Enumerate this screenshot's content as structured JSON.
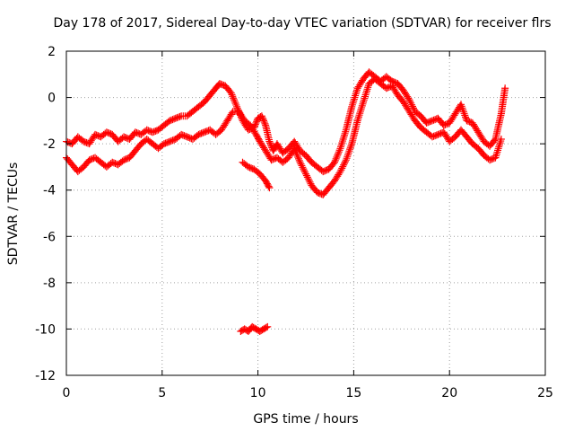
{
  "chart_data": {
    "type": "scatter",
    "title": "Day 178 of 2017, Sidereal Day-to-day VTEC variation (SDTVAR) for receiver flrs",
    "xlabel": "GPS time / hours",
    "ylabel": "SDTVAR / TECUs",
    "xlim": [
      0,
      25
    ],
    "ylim": [
      -12,
      2
    ],
    "xticks": [
      0,
      5,
      10,
      15,
      20,
      25
    ],
    "yticks": [
      -12,
      -10,
      -8,
      -6,
      -4,
      -2,
      0,
      2
    ],
    "grid": true,
    "marker": "plus",
    "color": "#ff0000",
    "series": [
      {
        "name": "main-band-upper",
        "x": [
          0.0,
          0.3,
          0.6,
          0.9,
          1.2,
          1.5,
          1.8,
          2.1,
          2.4,
          2.7,
          3.0,
          3.3,
          3.6,
          3.9,
          4.2,
          4.5,
          4.8,
          5.1,
          5.4,
          5.7,
          6.0,
          6.3,
          6.6,
          6.9,
          7.2,
          7.5,
          7.8,
          8.0,
          8.3,
          8.6,
          8.9,
          9.2,
          9.5,
          9.8,
          10.0,
          10.2,
          10.4,
          10.6,
          10.8,
          11.0,
          11.3,
          11.6,
          11.9,
          12.2,
          12.5,
          12.8,
          13.1,
          13.4,
          13.7,
          14.0,
          14.3,
          14.6,
          14.9,
          15.2,
          15.5,
          15.8,
          16.1,
          16.4,
          16.7,
          17.0,
          17.3,
          17.6,
          17.9,
          18.2,
          18.5,
          18.8,
          19.1,
          19.4,
          19.7,
          20.0,
          20.3,
          20.6,
          20.9,
          21.2,
          21.5,
          21.8,
          22.1,
          22.4,
          22.7,
          22.9
        ],
        "y": [
          -1.9,
          -2.0,
          -1.7,
          -1.9,
          -2.0,
          -1.6,
          -1.7,
          -1.5,
          -1.6,
          -1.9,
          -1.7,
          -1.8,
          -1.5,
          -1.6,
          -1.4,
          -1.5,
          -1.4,
          -1.2,
          -1.0,
          -0.9,
          -0.8,
          -0.8,
          -0.6,
          -0.4,
          -0.2,
          0.1,
          0.4,
          0.6,
          0.5,
          0.2,
          -0.4,
          -1.0,
          -1.4,
          -1.3,
          -0.9,
          -0.8,
          -1.2,
          -1.9,
          -2.3,
          -2.0,
          -2.4,
          -2.2,
          -1.9,
          -2.3,
          -2.5,
          -2.8,
          -3.0,
          -3.2,
          -3.1,
          -2.8,
          -2.2,
          -1.4,
          -0.4,
          0.4,
          0.8,
          1.1,
          0.9,
          0.7,
          0.9,
          0.7,
          0.6,
          0.3,
          -0.1,
          -0.6,
          -0.8,
          -1.1,
          -1.0,
          -0.9,
          -1.2,
          -1.1,
          -0.7,
          -0.3,
          -1.0,
          -1.1,
          -1.5,
          -1.9,
          -2.1,
          -1.8,
          -0.7,
          0.4
        ]
      },
      {
        "name": "main-band-lower",
        "x": [
          0.0,
          0.3,
          0.6,
          0.9,
          1.2,
          1.5,
          1.8,
          2.1,
          2.4,
          2.7,
          3.0,
          3.3,
          3.6,
          3.9,
          4.2,
          4.5,
          4.8,
          5.1,
          5.4,
          5.7,
          6.0,
          6.3,
          6.6,
          6.9,
          7.2,
          7.5,
          7.8,
          8.1,
          8.4,
          8.7,
          9.0,
          9.3,
          9.6,
          9.9,
          10.1,
          10.4,
          10.7,
          11.0,
          11.3,
          11.6,
          11.9,
          12.2,
          12.5,
          12.8,
          13.1,
          13.4,
          13.7,
          14.0,
          14.3,
          14.6,
          14.9,
          15.2,
          15.5,
          15.8,
          16.1,
          16.4,
          16.7,
          17.0,
          17.3,
          17.6,
          17.9,
          18.2,
          18.5,
          18.8,
          19.1,
          19.4,
          19.7,
          20.0,
          20.3,
          20.6,
          20.9,
          21.2,
          21.5,
          21.8,
          22.1,
          22.4,
          22.7
        ],
        "y": [
          -2.6,
          -2.9,
          -3.2,
          -3.0,
          -2.7,
          -2.6,
          -2.8,
          -3.0,
          -2.8,
          -2.9,
          -2.7,
          -2.6,
          -2.3,
          -2.0,
          -1.8,
          -2.0,
          -2.2,
          -2.0,
          -1.9,
          -1.8,
          -1.6,
          -1.7,
          -1.8,
          -1.6,
          -1.5,
          -1.4,
          -1.6,
          -1.4,
          -1.0,
          -0.6,
          -0.6,
          -1.0,
          -1.2,
          -1.6,
          -1.9,
          -2.3,
          -2.7,
          -2.6,
          -2.8,
          -2.6,
          -2.2,
          -2.8,
          -3.3,
          -3.8,
          -4.1,
          -4.2,
          -3.9,
          -3.6,
          -3.2,
          -2.7,
          -2.0,
          -1.0,
          -0.2,
          0.6,
          0.8,
          0.6,
          0.4,
          0.5,
          0.1,
          -0.2,
          -0.6,
          -1.0,
          -1.3,
          -1.5,
          -1.7,
          -1.6,
          -1.5,
          -1.9,
          -1.7,
          -1.4,
          -1.7,
          -2.0,
          -2.2,
          -2.5,
          -2.7,
          -2.6,
          -1.8
        ]
      },
      {
        "name": "segment-9-10h",
        "x": [
          9.2,
          9.5,
          9.8,
          10.1,
          10.4,
          10.6
        ],
        "y": [
          -2.8,
          -3.0,
          -3.1,
          -3.3,
          -3.6,
          -3.9
        ]
      },
      {
        "name": "outlier-cluster",
        "x": [
          9.1,
          9.3,
          9.5,
          9.7,
          9.9,
          10.1,
          10.3,
          10.5
        ],
        "y": [
          -10.1,
          -10.0,
          -10.1,
          -9.9,
          -10.0,
          -10.1,
          -10.0,
          -9.9
        ]
      }
    ]
  }
}
